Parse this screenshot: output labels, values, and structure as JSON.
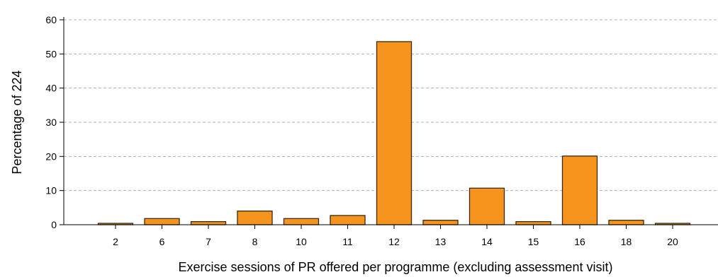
{
  "chart_data": {
    "type": "bar",
    "title": "",
    "xlabel": "Exercise sessions of PR  offered per programme (excluding assessment visit)",
    "ylabel": "Percentage of 224",
    "categories": [
      "2",
      "6",
      "7",
      "8",
      "10",
      "11",
      "12",
      "13",
      "14",
      "15",
      "16",
      "18",
      "20"
    ],
    "values": [
      0.4,
      1.8,
      0.9,
      4.0,
      1.8,
      2.7,
      53.6,
      1.3,
      10.7,
      0.9,
      20.1,
      1.3,
      0.4
    ],
    "ylim": [
      0,
      60
    ],
    "yticks": [
      0,
      10,
      20,
      30,
      40,
      50,
      60
    ],
    "grid": true,
    "bar_color": "#F7941D",
    "bar_stroke": "#3a2a10",
    "grid_color": "#b0b0b0"
  }
}
